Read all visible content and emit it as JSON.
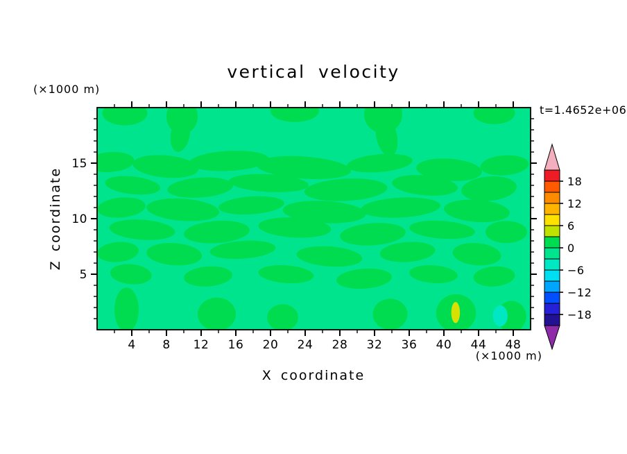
{
  "figure": {
    "background": "#ffffff"
  },
  "chart_data": {
    "type": "heatmap",
    "title": "vertical velocity",
    "timestamp": "t=1.4652e+06",
    "xlabel": "X coordinate",
    "ylabel": "Z coordinate",
    "x_units": "(×1000 m)",
    "y_units": "(×1000 m)",
    "xlim": [
      0,
      50
    ],
    "ylim": [
      0,
      20
    ],
    "x_ticks": [
      4,
      8,
      12,
      16,
      20,
      24,
      28,
      32,
      36,
      40,
      44,
      48
    ],
    "x_minor_step": 2,
    "y_ticks": [
      5,
      10,
      15
    ],
    "y_minor_step": 1,
    "grid": false,
    "legend_position": "right-colorbar",
    "colorbar": {
      "labels": [
        "18",
        "12",
        "6",
        "0",
        "−6",
        "−12",
        "−18"
      ],
      "label_values": [
        18,
        12,
        6,
        0,
        -6,
        -12,
        -18
      ],
      "range": [
        -21,
        21
      ],
      "segment_step": 3,
      "segment_colors_top_to_bottom": [
        "#ee1c25",
        "#ff5a00",
        "#ff8c00",
        "#ffb400",
        "#ffe100",
        "#bfe200",
        "#00dc50",
        "#00e58d",
        "#00e7c3",
        "#00dff2",
        "#00a5ff",
        "#0050ff",
        "#2421d8",
        "#231194"
      ],
      "over_color": "#f3afbe",
      "under_color": "#8d2ba8"
    },
    "field": {
      "description": "contour field of vertical velocity, values mostly between -3 and 3",
      "base_value_band": "-3 to 0",
      "blob_value_band": "0 to 3",
      "base_color": "#00e58d",
      "blob_color": "#00dc50",
      "blobs": [
        [
          3.2,
          19.5,
          2.6,
          1.1,
          0
        ],
        [
          9.8,
          19.2,
          1.8,
          1.6,
          0
        ],
        [
          9.6,
          17.6,
          1.1,
          1.6,
          10
        ],
        [
          22.8,
          19.7,
          2.8,
          1.0,
          0
        ],
        [
          33.0,
          19.4,
          2.2,
          1.7,
          0
        ],
        [
          33.4,
          17.4,
          1.2,
          1.8,
          -12
        ],
        [
          45.8,
          19.5,
          2.4,
          1.0,
          0
        ],
        [
          1.5,
          15.1,
          2.8,
          0.9,
          -4
        ],
        [
          7.9,
          14.7,
          3.8,
          1.0,
          5
        ],
        [
          15.2,
          15.2,
          4.6,
          0.9,
          -3
        ],
        [
          23.8,
          14.6,
          5.5,
          1.0,
          4
        ],
        [
          32.6,
          15.0,
          3.8,
          0.8,
          -5
        ],
        [
          40.6,
          14.4,
          3.8,
          1.0,
          4
        ],
        [
          47.0,
          14.8,
          2.8,
          0.9,
          -4
        ],
        [
          4.1,
          13.0,
          3.2,
          0.8,
          6
        ],
        [
          11.9,
          12.8,
          3.8,
          0.9,
          -4
        ],
        [
          19.8,
          13.2,
          4.6,
          0.8,
          3
        ],
        [
          28.7,
          12.6,
          4.8,
          1.0,
          -3
        ],
        [
          37.8,
          13.0,
          3.8,
          0.9,
          5
        ],
        [
          45.2,
          12.7,
          3.2,
          1.1,
          -5
        ],
        [
          2.8,
          11.0,
          2.8,
          0.9,
          -5
        ],
        [
          9.9,
          10.8,
          4.2,
          1.0,
          4
        ],
        [
          17.8,
          11.2,
          3.8,
          0.8,
          -4
        ],
        [
          26.2,
          10.6,
          4.8,
          1.0,
          3
        ],
        [
          35.0,
          11.0,
          4.6,
          0.9,
          -3
        ],
        [
          43.8,
          10.7,
          3.8,
          1.0,
          4
        ],
        [
          5.2,
          9.0,
          3.8,
          0.9,
          4
        ],
        [
          13.8,
          8.8,
          3.8,
          1.0,
          -4
        ],
        [
          22.8,
          9.2,
          4.2,
          0.9,
          3
        ],
        [
          31.8,
          8.6,
          3.8,
          1.0,
          -4
        ],
        [
          39.8,
          9.0,
          3.8,
          0.8,
          4
        ],
        [
          47.2,
          8.8,
          2.4,
          1.0,
          0
        ],
        [
          2.4,
          7.0,
          2.4,
          0.9,
          -5
        ],
        [
          8.9,
          6.8,
          3.2,
          1.0,
          4
        ],
        [
          16.8,
          7.2,
          3.8,
          0.8,
          -4
        ],
        [
          26.8,
          6.6,
          3.8,
          0.9,
          4
        ],
        [
          35.8,
          7.0,
          3.2,
          0.9,
          -4
        ],
        [
          43.8,
          6.8,
          2.8,
          1.0,
          5
        ],
        [
          3.9,
          5.0,
          2.4,
          0.9,
          5
        ],
        [
          12.8,
          4.8,
          2.8,
          0.9,
          -4
        ],
        [
          21.8,
          5.0,
          3.2,
          0.8,
          4
        ],
        [
          30.8,
          4.6,
          3.2,
          0.9,
          -4
        ],
        [
          38.8,
          5.0,
          2.8,
          0.8,
          4
        ],
        [
          45.8,
          4.8,
          2.4,
          0.9,
          -4
        ],
        [
          3.4,
          1.8,
          1.4,
          2.0,
          0
        ],
        [
          13.8,
          1.4,
          2.2,
          1.5,
          0
        ],
        [
          21.4,
          1.1,
          1.8,
          1.2,
          0
        ],
        [
          33.8,
          1.4,
          2.0,
          1.4,
          0
        ],
        [
          41.4,
          1.5,
          2.3,
          1.7,
          0
        ],
        [
          47.8,
          1.2,
          1.7,
          1.4,
          0
        ]
      ],
      "extra_blobs": [
        {
          "x": 41.35,
          "z": 1.55,
          "rx": 0.5,
          "ry": 0.95,
          "rot": 0,
          "color": "#d7e000",
          "name": "yellow-anomaly-blob"
        },
        {
          "x": 46.5,
          "z": 1.25,
          "rx": 0.85,
          "ry": 0.95,
          "rot": 0,
          "color": "#00e7c3",
          "name": "cyan-anomaly-blob"
        }
      ]
    }
  }
}
